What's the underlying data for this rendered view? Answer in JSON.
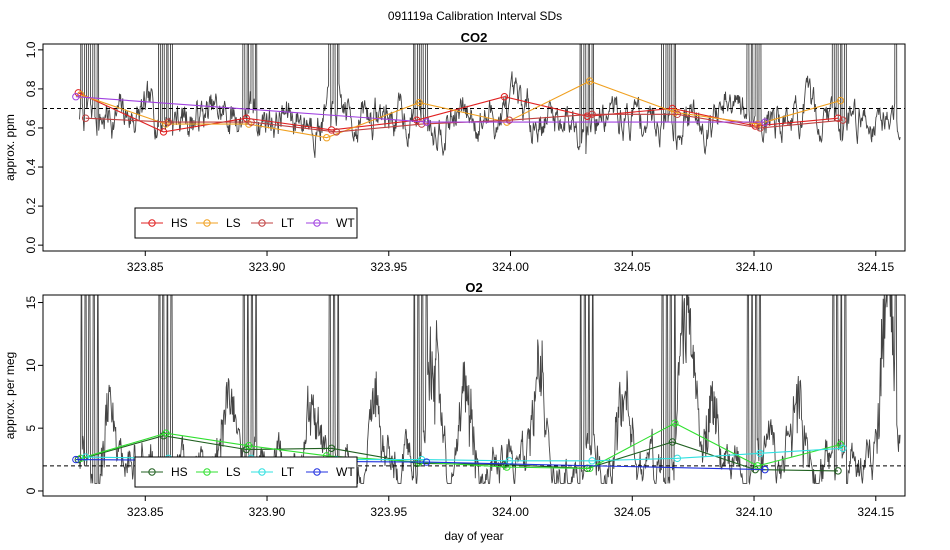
{
  "figure": {
    "title": "091119a   Calibration Interval SDs",
    "xlabel": "day of year"
  },
  "chart_data": [
    {
      "type": "line",
      "title": "CO2",
      "xlabel": "",
      "ylabel": "approx. ppm",
      "xlim": [
        323.808,
        324.162
      ],
      "ylim": [
        -0.03,
        1.03
      ],
      "xticks": [
        "323.85",
        "323.90",
        "323.95",
        "324.00",
        "324.05",
        "324.10",
        "324.15"
      ],
      "xtick_values": [
        323.85,
        323.9,
        323.95,
        324.0,
        324.05,
        324.1,
        324.15
      ],
      "yticks": [
        "0.0",
        "0.2",
        "0.4",
        "0.6",
        "0.8",
        "1.0"
      ],
      "ytick_values": [
        0.0,
        0.2,
        0.4,
        0.6,
        0.8,
        1.0
      ],
      "reference_line": 0.7,
      "background_trace": {
        "color": "#444444",
        "seed": 7,
        "base": 0.68,
        "mid": 0.66,
        "amp": 0.14,
        "min": 0.44,
        "max": 1.03,
        "x_start": 323.823,
        "x_end": 324.16,
        "spikes": [
          323.8238,
          323.8254,
          323.8271,
          323.8288,
          323.8305,
          323.8558,
          323.8574,
          323.8591,
          323.8608,
          323.8905,
          323.8921,
          323.8938,
          323.8955,
          323.9258,
          323.9275,
          323.9292,
          323.9605,
          323.9622,
          323.9638,
          323.9655,
          324.0288,
          324.0305,
          324.0322,
          324.0338,
          324.0625,
          324.0642,
          324.0658,
          324.0675,
          324.0975,
          324.0992,
          324.1008,
          324.1025,
          324.1325,
          324.1342,
          324.1358,
          324.1375,
          324.1582
        ]
      },
      "series": [
        {
          "name": "HS",
          "color": "#e02020",
          "x": [
            323.8225,
            323.8575,
            323.8915,
            323.9265,
            323.9615,
            323.9975,
            324.0315,
            324.0665,
            324.1005,
            324.1345
          ],
          "y": [
            0.78,
            0.58,
            0.65,
            0.59,
            0.64,
            0.76,
            0.66,
            0.7,
            0.61,
            0.65
          ]
        },
        {
          "name": "LS",
          "color": "#f0a020",
          "x": [
            323.8235,
            323.8585,
            323.8925,
            323.9245,
            323.9625,
            323.9985,
            324.0325,
            324.0675,
            324.1015,
            324.1355
          ],
          "y": [
            0.77,
            0.62,
            0.62,
            0.55,
            0.73,
            0.63,
            0.84,
            0.68,
            0.62,
            0.74
          ]
        },
        {
          "name": "LT",
          "color": "#c04040",
          "x": [
            323.8255,
            323.8595,
            323.8935,
            323.9285,
            323.9635,
            323.9995,
            324.0335,
            324.0685,
            324.1025,
            324.1365
          ],
          "y": [
            0.65,
            0.63,
            0.63,
            0.58,
            0.62,
            0.64,
            0.67,
            0.67,
            0.6,
            0.64
          ]
        },
        {
          "name": "WT",
          "color": "#a040e0",
          "x": [
            323.8215,
            323.9655,
            324.1045
          ],
          "y": [
            0.76,
            0.63,
            0.63
          ]
        }
      ]
    },
    {
      "type": "line",
      "title": "O2",
      "xlabel": "day of year",
      "ylabel": "approx. per meg",
      "xlim": [
        323.808,
        324.162
      ],
      "ylim": [
        -0.4,
        15.6
      ],
      "xticks": [
        "323.85",
        "323.90",
        "323.95",
        "324.00",
        "324.05",
        "324.10",
        "324.15"
      ],
      "xtick_values": [
        323.85,
        323.9,
        323.95,
        324.0,
        324.05,
        324.1,
        324.15
      ],
      "yticks": [
        "0",
        "5",
        "10",
        "15"
      ],
      "ytick_values": [
        0,
        5,
        10,
        15
      ],
      "reference_line": 2,
      "background_trace": {
        "color": "#444444",
        "seed": 13,
        "base": 3.2,
        "mid": 2.2,
        "amp": 2.8,
        "min": 0.6,
        "max": 15.6,
        "x_start": 323.823,
        "x_end": 324.16,
        "spikes": [
          323.8238,
          323.8254,
          323.8271,
          323.8288,
          323.8305,
          323.8558,
          323.8574,
          323.8591,
          323.8608,
          323.8905,
          323.8921,
          323.8938,
          323.8955,
          323.9258,
          323.9275,
          323.9292,
          323.9605,
          323.9622,
          323.9638,
          323.9655,
          324.0288,
          324.0305,
          324.0322,
          324.0338,
          324.0625,
          324.0642,
          324.0658,
          324.0675,
          324.0975,
          324.0992,
          324.1008,
          324.1025,
          324.1325,
          324.1342,
          324.1358,
          324.1375,
          324.1582
        ],
        "bumps": [
          [
            323.835,
            4.5
          ],
          [
            323.884,
            5.2
          ],
          [
            323.918,
            6.0
          ],
          [
            323.945,
            5.5
          ],
          [
            323.968,
            9.5
          ],
          [
            323.982,
            7.0
          ],
          [
            324.012,
            6.8
          ],
          [
            324.046,
            6.5
          ],
          [
            324.072,
            10.5
          ],
          [
            324.082,
            6.0
          ],
          [
            324.118,
            4.8
          ],
          [
            324.155,
            13.0
          ]
        ]
      },
      "series": [
        {
          "name": "HS",
          "color": "#206020",
          "x": [
            323.8225,
            323.8575,
            323.8915,
            323.9265,
            323.9615,
            323.9975,
            324.0315,
            324.0665,
            324.1005,
            324.1345
          ],
          "y": [
            2.5,
            4.4,
            3.3,
            3.4,
            2.2,
            2.1,
            1.8,
            3.9,
            1.7,
            1.6
          ]
        },
        {
          "name": "LS",
          "color": "#30e030",
          "x": [
            323.8235,
            323.8585,
            323.8925,
            323.9245,
            323.9625,
            323.9985,
            324.0325,
            324.0675,
            324.1015,
            324.1355
          ],
          "y": [
            2.6,
            4.6,
            3.6,
            2.8,
            2.3,
            1.9,
            1.8,
            5.4,
            2.0,
            3.7
          ]
        },
        {
          "name": "LT",
          "color": "#30e0e0",
          "x": [
            323.8255,
            323.8595,
            323.8935,
            323.9285,
            323.9635,
            323.9995,
            324.0335,
            324.0685,
            324.1025,
            324.1365
          ],
          "y": [
            2.7,
            2.6,
            2.6,
            2.5,
            2.5,
            2.4,
            2.4,
            2.6,
            3.0,
            3.4
          ]
        },
        {
          "name": "WT",
          "color": "#2030e0",
          "x": [
            323.8215,
            323.9655,
            324.1045
          ],
          "y": [
            2.5,
            2.3,
            1.7
          ]
        }
      ]
    }
  ]
}
